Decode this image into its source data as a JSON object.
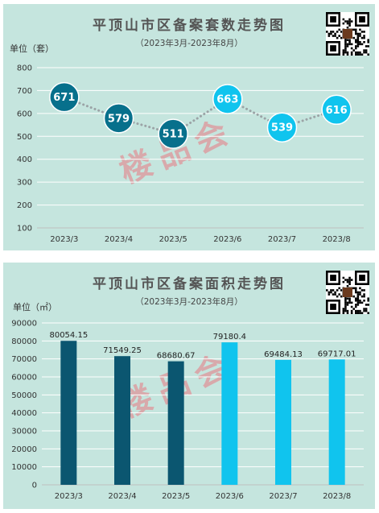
{
  "watermark_text": "楼品会",
  "chart_data": [
    {
      "type": "line",
      "title": "平顶山市区备案套数走势图",
      "subtitle": "（2023年3月-2023年8月）",
      "ylabel": "单位（套）",
      "categories": [
        "2023/3",
        "2023/4",
        "2023/5",
        "2023/6",
        "2023/7",
        "2023/8"
      ],
      "values": [
        671,
        579,
        511,
        663,
        539,
        616
      ],
      "data_labels": [
        "671",
        "579",
        "511",
        "663",
        "539",
        "616"
      ],
      "yticks": [
        "100",
        "200",
        "300",
        "400",
        "500",
        "600",
        "700",
        "800"
      ],
      "ylim": [
        100,
        800
      ],
      "grid": true,
      "colors": [
        "#07708c",
        "#07708c",
        "#07708c",
        "#10c4ee",
        "#10c4ee",
        "#10c4ee"
      ],
      "line_color": "#9ba3a6"
    },
    {
      "type": "bar",
      "title": "平顶山市区备案面积走势图",
      "subtitle": "（2023年3月-2023年8月）",
      "ylabel": "单位（㎡）",
      "categories": [
        "2023/3",
        "2023/4",
        "2023/5",
        "2023/6",
        "2023/7",
        "2023/8"
      ],
      "values": [
        80054.15,
        71549.25,
        68680.67,
        79180.4,
        69484.13,
        69717.01
      ],
      "data_labels": [
        "80054.15",
        "71549.25",
        "68680.67",
        "79180.4",
        "69484.13",
        "69717.01"
      ],
      "yticks": [
        "0",
        "10000",
        "20000",
        "30000",
        "40000",
        "50000",
        "60000",
        "70000",
        "80000",
        "90000"
      ],
      "ylim": [
        0,
        90000
      ],
      "grid": true,
      "colors": [
        "#0b5670",
        "#0b5670",
        "#0b5670",
        "#10c4ee",
        "#10c4ee",
        "#10c4ee"
      ]
    }
  ]
}
